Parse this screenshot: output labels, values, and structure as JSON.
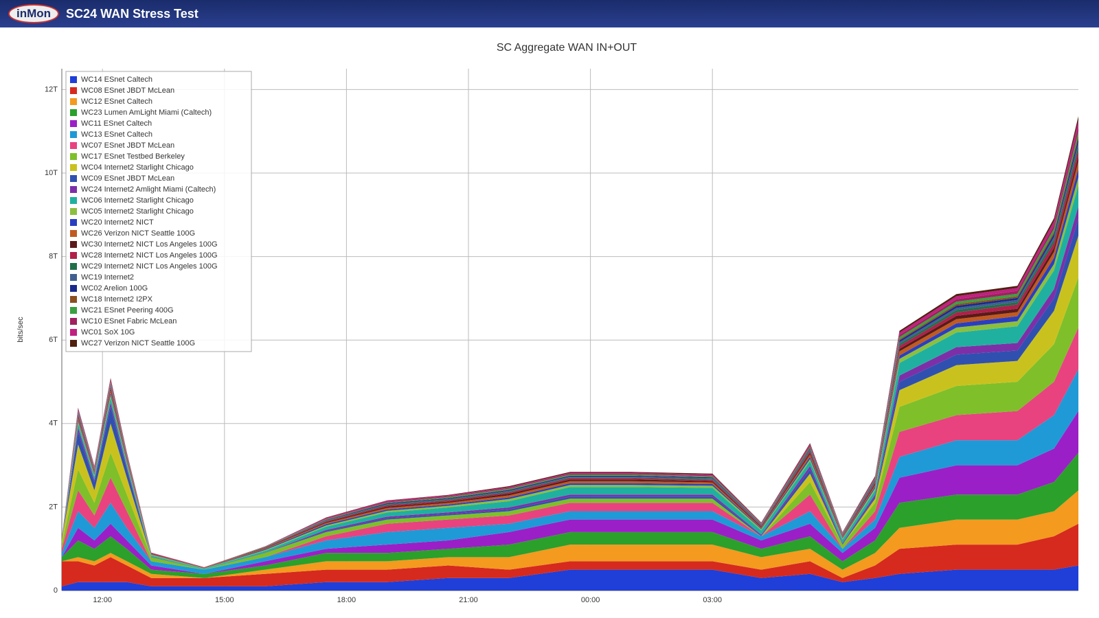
{
  "header": {
    "logo": "inMon",
    "title": "SC24 WAN Stress Test"
  },
  "chart_data": {
    "type": "stacked-area",
    "title": "SC Aggregate WAN IN+OUT",
    "ylabel": "bits/sec",
    "x": [
      11,
      11.4,
      11.8,
      12.2,
      12.6,
      13.2,
      14.5,
      16,
      17.5,
      19,
      20.5,
      22,
      23.5,
      25,
      27,
      28.2,
      29.4,
      30.2,
      31,
      31.6,
      33,
      34.5,
      35.4,
      36
    ],
    "xlim": [
      11,
      36
    ],
    "xticks": [
      {
        "value": 12,
        "label": "12:00"
      },
      {
        "value": 15,
        "label": "15:00"
      },
      {
        "value": 18,
        "label": "18:00"
      },
      {
        "value": 21,
        "label": "21:00"
      },
      {
        "value": 24,
        "label": "00:00"
      },
      {
        "value": 27,
        "label": "03:00"
      }
    ],
    "ylim": [
      0,
      12.5
    ],
    "yticks": [
      0,
      {
        "value": 2,
        "label": "2T"
      },
      {
        "value": 4,
        "label": "4T"
      },
      {
        "value": 6,
        "label": "6T"
      },
      {
        "value": 8,
        "label": "8T"
      },
      {
        "value": 10,
        "label": "10T"
      },
      {
        "value": 12,
        "label": "12T"
      }
    ],
    "grid": true,
    "legend": "top-left",
    "series": [
      {
        "name": "WC14 ESnet Caltech",
        "color": "#1f3fd8",
        "values": [
          0.1,
          0.2,
          0.2,
          0.2,
          0.2,
          0.1,
          0.1,
          0.1,
          0.2,
          0.2,
          0.3,
          0.3,
          0.5,
          0.5,
          0.5,
          0.3,
          0.4,
          0.2,
          0.3,
          0.4,
          0.5,
          0.5,
          0.5,
          0.6
        ]
      },
      {
        "name": "WC08 ESnet JBDT McLean",
        "color": "#d62a1e",
        "values": [
          0.6,
          0.5,
          0.4,
          0.6,
          0.4,
          0.2,
          0.2,
          0.3,
          0.3,
          0.3,
          0.3,
          0.2,
          0.2,
          0.2,
          0.2,
          0.2,
          0.3,
          0.1,
          0.3,
          0.6,
          0.6,
          0.6,
          0.8,
          1.0
        ]
      },
      {
        "name": "WC12 ESnet Caltech",
        "color": "#f39a1f",
        "values": [
          0.0,
          0.1,
          0.1,
          0.1,
          0.1,
          0.1,
          0.0,
          0.1,
          0.2,
          0.2,
          0.2,
          0.3,
          0.4,
          0.4,
          0.4,
          0.3,
          0.3,
          0.2,
          0.3,
          0.5,
          0.6,
          0.6,
          0.6,
          0.8
        ]
      },
      {
        "name": "WC23 Lumen AmLight Miami (Caltech)",
        "color": "#2ba02b",
        "values": [
          0.1,
          0.4,
          0.3,
          0.4,
          0.3,
          0.1,
          0.1,
          0.1,
          0.2,
          0.2,
          0.2,
          0.3,
          0.3,
          0.3,
          0.3,
          0.2,
          0.3,
          0.2,
          0.3,
          0.6,
          0.6,
          0.6,
          0.7,
          0.9
        ]
      },
      {
        "name": "WC11 ESnet Caltech",
        "color": "#9b1fc7",
        "values": [
          0.0,
          0.3,
          0.2,
          0.3,
          0.2,
          0.1,
          0.0,
          0.1,
          0.1,
          0.2,
          0.2,
          0.3,
          0.3,
          0.3,
          0.3,
          0.2,
          0.3,
          0.2,
          0.3,
          0.6,
          0.7,
          0.7,
          0.8,
          1.0
        ]
      },
      {
        "name": "WC13 ESnet Caltech",
        "color": "#1f9ad6",
        "values": [
          0.1,
          0.4,
          0.3,
          0.5,
          0.3,
          0.1,
          0.1,
          0.1,
          0.2,
          0.3,
          0.3,
          0.2,
          0.2,
          0.2,
          0.2,
          0.1,
          0.3,
          0.1,
          0.2,
          0.5,
          0.6,
          0.6,
          0.8,
          1.0
        ]
      },
      {
        "name": "WC07 ESnet JBDT McLean",
        "color": "#e8437f",
        "values": [
          0.1,
          0.5,
          0.3,
          0.6,
          0.4,
          0.0,
          0.0,
          0.0,
          0.1,
          0.2,
          0.2,
          0.2,
          0.2,
          0.2,
          0.2,
          0.0,
          0.4,
          0.0,
          0.2,
          0.6,
          0.6,
          0.7,
          0.8,
          1.0
        ]
      },
      {
        "name": "WC17 ESnet Testbed Berkeley",
        "color": "#7fbf2a",
        "values": [
          0.1,
          0.5,
          0.3,
          0.6,
          0.4,
          0.1,
          0.0,
          0.1,
          0.1,
          0.1,
          0.1,
          0.1,
          0.1,
          0.1,
          0.1,
          0.0,
          0.3,
          0.1,
          0.2,
          0.6,
          0.7,
          0.7,
          0.9,
          1.2
        ]
      },
      {
        "name": "WC04 Internet2 Starlight Chicago",
        "color": "#c9c21e",
        "values": [
          0.1,
          0.6,
          0.3,
          0.7,
          0.4,
          0.0,
          0.0,
          0.0,
          0.0,
          0.0,
          0.0,
          0.0,
          0.0,
          0.0,
          0.0,
          0.0,
          0.2,
          0.0,
          0.1,
          0.4,
          0.5,
          0.5,
          0.8,
          1.0
        ]
      },
      {
        "name": "WC09 ESnet JBDT McLean",
        "color": "#3050b0",
        "values": [
          0.0,
          0.3,
          0.2,
          0.4,
          0.2,
          0.0,
          0.0,
          0.0,
          0.02,
          0.03,
          0.03,
          0.04,
          0.05,
          0.05,
          0.05,
          0.02,
          0.1,
          0.02,
          0.05,
          0.2,
          0.25,
          0.25,
          0.3,
          0.4
        ]
      },
      {
        "name": "WC24 Internet2 Amlight Miami (Caltech)",
        "color": "#7d2fa8",
        "values": [
          0.0,
          0.1,
          0.05,
          0.1,
          0.05,
          0.01,
          0.0,
          0.01,
          0.03,
          0.04,
          0.04,
          0.05,
          0.05,
          0.05,
          0.05,
          0.02,
          0.08,
          0.02,
          0.05,
          0.15,
          0.18,
          0.18,
          0.22,
          0.3
        ]
      },
      {
        "name": "WC06 Internet2 Starlight Chicago",
        "color": "#20b0a0",
        "values": [
          0.02,
          0.1,
          0.08,
          0.12,
          0.08,
          0.03,
          0.02,
          0.04,
          0.08,
          0.1,
          0.12,
          0.15,
          0.18,
          0.18,
          0.16,
          0.1,
          0.12,
          0.08,
          0.1,
          0.3,
          0.35,
          0.4,
          0.45,
          0.5
        ]
      },
      {
        "name": "WC05 Internet2 Starlight Chicago",
        "color": "#8cbf3f",
        "values": [
          0.02,
          0.05,
          0.04,
          0.06,
          0.04,
          0.02,
          0.01,
          0.02,
          0.03,
          0.04,
          0.04,
          0.05,
          0.05,
          0.05,
          0.05,
          0.03,
          0.05,
          0.03,
          0.05,
          0.1,
          0.12,
          0.12,
          0.15,
          0.2
        ]
      },
      {
        "name": "WC20 Internet2 NICT",
        "color": "#2a3fc0",
        "values": [
          0.01,
          0.04,
          0.03,
          0.05,
          0.03,
          0.01,
          0.01,
          0.02,
          0.03,
          0.03,
          0.03,
          0.04,
          0.04,
          0.04,
          0.04,
          0.02,
          0.05,
          0.02,
          0.04,
          0.08,
          0.1,
          0.12,
          0.15,
          0.2
        ]
      },
      {
        "name": "WC26 Verizon NICT Seattle 100G",
        "color": "#c05a20",
        "values": [
          0.01,
          0.05,
          0.03,
          0.06,
          0.04,
          0.01,
          0.01,
          0.02,
          0.03,
          0.04,
          0.04,
          0.05,
          0.05,
          0.05,
          0.04,
          0.02,
          0.06,
          0.02,
          0.04,
          0.1,
          0.1,
          0.1,
          0.14,
          0.18
        ]
      },
      {
        "name": "WC30 Internet2 NICT Los Angeles 100G",
        "color": "#5a1a1a",
        "values": [
          0.0,
          0.03,
          0.02,
          0.04,
          0.02,
          0.01,
          0.0,
          0.01,
          0.02,
          0.03,
          0.03,
          0.04,
          0.04,
          0.04,
          0.03,
          0.02,
          0.04,
          0.01,
          0.03,
          0.06,
          0.08,
          0.08,
          0.1,
          0.12
        ]
      },
      {
        "name": "WC28 Internet2 NICT Los Angeles 100G",
        "color": "#b0204a",
        "values": [
          0.01,
          0.04,
          0.03,
          0.05,
          0.03,
          0.01,
          0.01,
          0.01,
          0.02,
          0.03,
          0.03,
          0.03,
          0.03,
          0.03,
          0.03,
          0.02,
          0.04,
          0.02,
          0.03,
          0.07,
          0.08,
          0.1,
          0.12,
          0.15
        ]
      },
      {
        "name": "WC29 Internet2 NICT Los Angeles 100G",
        "color": "#20704a",
        "values": [
          0.0,
          0.02,
          0.02,
          0.03,
          0.02,
          0.0,
          0.0,
          0.01,
          0.01,
          0.02,
          0.02,
          0.02,
          0.02,
          0.02,
          0.02,
          0.01,
          0.03,
          0.01,
          0.02,
          0.05,
          0.06,
          0.06,
          0.08,
          0.1
        ]
      },
      {
        "name": "WC19 Internet2",
        "color": "#406090",
        "values": [
          0.0,
          0.02,
          0.01,
          0.02,
          0.01,
          0.0,
          0.0,
          0.0,
          0.01,
          0.01,
          0.01,
          0.02,
          0.02,
          0.02,
          0.02,
          0.01,
          0.02,
          0.01,
          0.02,
          0.04,
          0.05,
          0.05,
          0.06,
          0.08
        ]
      },
      {
        "name": "WC02 Arelion 100G",
        "color": "#1a2a8a",
        "values": [
          0.0,
          0.02,
          0.01,
          0.02,
          0.01,
          0.0,
          0.0,
          0.0,
          0.01,
          0.02,
          0.02,
          0.02,
          0.02,
          0.02,
          0.02,
          0.01,
          0.02,
          0.01,
          0.02,
          0.04,
          0.05,
          0.05,
          0.07,
          0.1
        ]
      },
      {
        "name": "WC18 Internet2 I2PX",
        "color": "#8a5020",
        "values": [
          0.0,
          0.01,
          0.01,
          0.02,
          0.01,
          0.0,
          0.0,
          0.0,
          0.01,
          0.01,
          0.01,
          0.01,
          0.01,
          0.01,
          0.01,
          0.01,
          0.02,
          0.01,
          0.01,
          0.03,
          0.04,
          0.04,
          0.05,
          0.07
        ]
      },
      {
        "name": "WC21 ESnet Peering 400G",
        "color": "#3aa040",
        "values": [
          0.0,
          0.02,
          0.01,
          0.02,
          0.01,
          0.0,
          0.0,
          0.01,
          0.01,
          0.01,
          0.02,
          0.02,
          0.02,
          0.02,
          0.02,
          0.01,
          0.02,
          0.01,
          0.02,
          0.05,
          0.06,
          0.06,
          0.08,
          0.1
        ]
      },
      {
        "name": "WC10 ESnet Fabric McLean",
        "color": "#a02060",
        "values": [
          0.0,
          0.03,
          0.02,
          0.03,
          0.02,
          0.0,
          0.0,
          0.0,
          0.01,
          0.02,
          0.02,
          0.02,
          0.02,
          0.02,
          0.02,
          0.01,
          0.03,
          0.01,
          0.02,
          0.05,
          0.06,
          0.07,
          0.08,
          0.12
        ]
      },
      {
        "name": "WC01 SoX 10G",
        "color": "#c02080",
        "values": [
          0.0,
          0.03,
          0.02,
          0.04,
          0.02,
          0.01,
          0.0,
          0.01,
          0.02,
          0.02,
          0.02,
          0.02,
          0.02,
          0.02,
          0.02,
          0.01,
          0.03,
          0.01,
          0.02,
          0.06,
          0.07,
          0.07,
          0.1,
          0.14
        ]
      },
      {
        "name": "WC27 Verizon NICT Seattle 100G",
        "color": "#502010",
        "values": [
          0.0,
          0.02,
          0.01,
          0.03,
          0.02,
          0.0,
          0.0,
          0.0,
          0.01,
          0.01,
          0.01,
          0.02,
          0.02,
          0.02,
          0.02,
          0.01,
          0.02,
          0.01,
          0.02,
          0.04,
          0.05,
          0.05,
          0.07,
          0.1
        ]
      }
    ]
  }
}
